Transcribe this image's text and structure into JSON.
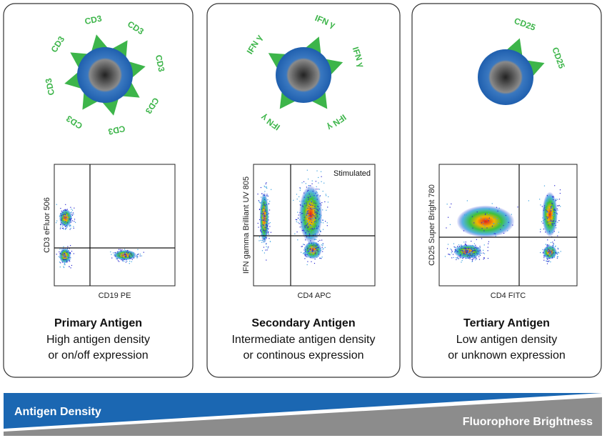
{
  "panels": [
    {
      "cell_labels": [
        "CD3",
        "CD3",
        "CD3",
        "CD3",
        "CD3",
        "CD3",
        "CD3",
        "CD3"
      ],
      "plot": {
        "x_label": "CD19 PE",
        "y_label": "CD3 eFluor 506"
      },
      "title": "Primary Antigen",
      "description": [
        "High antigen density",
        "or on/off expression"
      ]
    },
    {
      "cell_labels": [
        "IFN γ",
        "IFN γ",
        "IFN γ",
        "IFN γ",
        "IFN γ"
      ],
      "plot": {
        "x_label": "CD4 APC",
        "y_label": "IFN gamma Brilliant UV 805",
        "annotation": "Stimulated"
      },
      "title": "Secondary Antigen",
      "description": [
        "Intermediate antigen density",
        "or continous expression"
      ]
    },
    {
      "cell_labels": [
        "CD25",
        "CD25"
      ],
      "plot": {
        "x_label": "CD4 FITC",
        "y_label": "CD25 Super Bright 780"
      },
      "title": "Tertiary Antigen",
      "description": [
        "Low antigen density",
        "or unknown expression"
      ]
    }
  ],
  "banner": {
    "left": "Antigen Density",
    "right": "Fluorophore Brightness"
  }
}
